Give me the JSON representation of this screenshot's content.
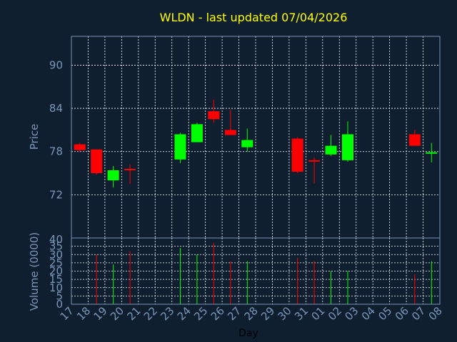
{
  "chart_data": {
    "type": "candlestick",
    "title": "WLDN - last updated 07/04/2026",
    "xlabel": "Day",
    "price_panel": {
      "ylabel": "Price",
      "yticks": [
        72,
        78,
        84,
        90
      ],
      "ylim": [
        66,
        94
      ]
    },
    "volume_panel": {
      "ylabel": "Volume (0000)",
      "yticks": [
        0,
        5,
        10,
        15,
        20,
        25,
        30,
        35
      ],
      "ylim": [
        0,
        40
      ],
      "top_tick_label": "40"
    },
    "x_tick_labels": [
      "17",
      "18",
      "19",
      "20",
      "21",
      "22",
      "23",
      "24",
      "25",
      "26",
      "27",
      "28",
      "29",
      "30",
      "31",
      "01",
      "02",
      "03",
      "04",
      "05",
      "06",
      "07",
      "08"
    ],
    "colors": {
      "up": "#00ff00",
      "down": "#ff0000",
      "grid": "#ffffff",
      "frame": "#7a96b8",
      "text": "#7a96b8",
      "title": "#ffff00",
      "background": "#0f1f30"
    },
    "candles": [
      {
        "day": "17",
        "open": 79.0,
        "close": 78.2,
        "high": 79.2,
        "low": 78.0,
        "volume": 0
      },
      {
        "day": "18",
        "open": 78.3,
        "close": 75.0,
        "high": 78.3,
        "low": 74.8,
        "volume": 30
      },
      {
        "day": "19",
        "open": 74.0,
        "close": 75.4,
        "high": 76.0,
        "low": 73.0,
        "volume": 24
      },
      {
        "day": "20",
        "open": 75.6,
        "close": 75.4,
        "high": 76.2,
        "low": 73.5,
        "volume": 32
      },
      {
        "day": "23",
        "open": 76.9,
        "close": 80.4,
        "high": 80.6,
        "low": 76.4,
        "volume": 34
      },
      {
        "day": "24",
        "open": 79.3,
        "close": 81.8,
        "high": 82.0,
        "low": 79.3,
        "volume": 30
      },
      {
        "day": "25",
        "open": 83.6,
        "close": 82.5,
        "high": 85.2,
        "low": 82.0,
        "volume": 37
      },
      {
        "day": "26",
        "open": 81.0,
        "close": 80.3,
        "high": 83.8,
        "low": 80.3,
        "volume": 26
      },
      {
        "day": "27",
        "open": 78.6,
        "close": 79.6,
        "high": 81.2,
        "low": 78.0,
        "volume": 26
      },
      {
        "day": "30",
        "open": 79.8,
        "close": 75.2,
        "high": 80.0,
        "low": 75.0,
        "volume": 28
      },
      {
        "day": "31",
        "open": 76.8,
        "close": 76.6,
        "high": 77.2,
        "low": 73.6,
        "volume": 26
      },
      {
        "day": "01",
        "open": 77.6,
        "close": 78.8,
        "high": 80.3,
        "low": 77.4,
        "volume": 20
      },
      {
        "day": "02",
        "open": 76.8,
        "close": 80.4,
        "high": 82.2,
        "low": 76.6,
        "volume": 20
      },
      {
        "day": "06",
        "open": 80.4,
        "close": 78.8,
        "high": 81.0,
        "low": 78.8,
        "volume": 18
      },
      {
        "day": "07",
        "open": 77.8,
        "close": 77.9,
        "high": 79.2,
        "low": 76.5,
        "volume": 26
      }
    ]
  }
}
